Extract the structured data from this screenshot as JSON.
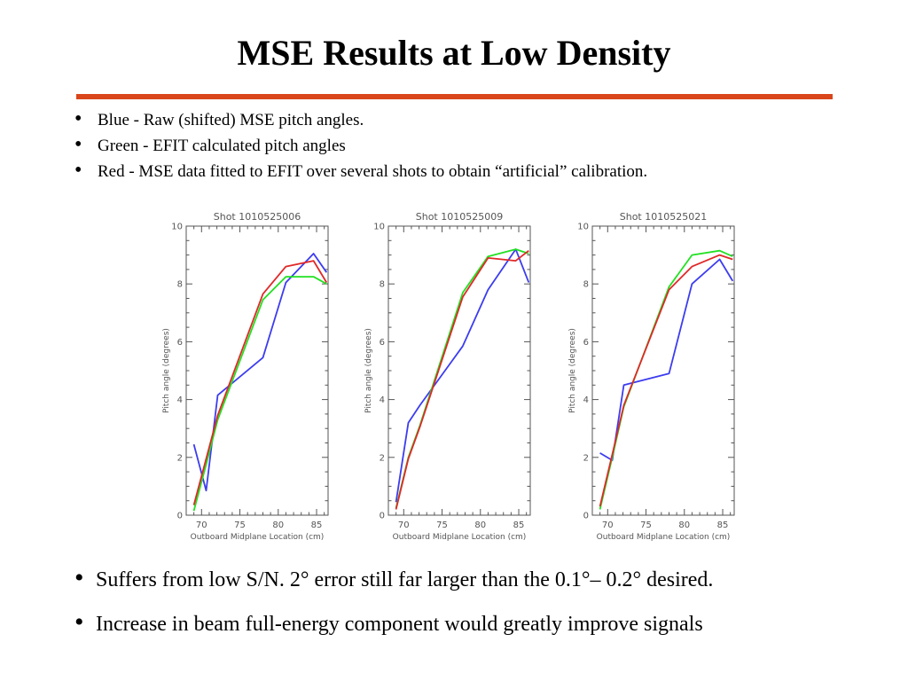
{
  "title": "MSE Results at Low Density",
  "colors": {
    "accent_rule": "#d9461b",
    "blue": "#3c3cf0",
    "green": "#22e022",
    "red": "#e02828",
    "axis": "#555555"
  },
  "bullets_top": [
    "Blue - Raw (shifted) MSE pitch angles.",
    "Green - EFIT calculated pitch angles",
    "Red - MSE data fitted to EFIT over several shots to obtain “artificial” calibration."
  ],
  "bullets_bottom": [
    "Suffers from low S/N.   2° error still far larger than the 0.1°– 0.2° desired.",
    "Increase in beam full-energy component would greatly improve signals"
  ],
  "chart_data": [
    {
      "type": "line",
      "title": "Shot 1010525006",
      "xlabel": "Outboard Midplane Location (cm)",
      "ylabel": "Pitch angle (degrees)",
      "xlim": [
        68,
        86.5
      ],
      "ylim": [
        0,
        10
      ],
      "xticks": [
        "70",
        "75",
        "80",
        "85"
      ],
      "yticks": [
        "0",
        "2",
        "4",
        "6",
        "8",
        "10"
      ],
      "series": [
        {
          "color": "#3c3cf0",
          "x": [
            69,
            70.6,
            72.1,
            78,
            81,
            84.6,
            86.3
          ],
          "y": [
            2.45,
            0.85,
            4.15,
            5.45,
            8.05,
            9.05,
            8.4
          ]
        },
        {
          "color": "#22e022",
          "x": [
            69,
            70.6,
            72.1,
            78,
            81,
            84.6,
            86.3
          ],
          "y": [
            0.15,
            1.75,
            3.3,
            7.45,
            8.25,
            8.25,
            8.0
          ]
        },
        {
          "color": "#e02828",
          "x": [
            69,
            70.6,
            72.1,
            78,
            81,
            84.6,
            86.3
          ],
          "y": [
            0.35,
            1.95,
            3.45,
            7.65,
            8.6,
            8.8,
            8.05
          ]
        }
      ]
    },
    {
      "type": "line",
      "title": "Shot 1010525009",
      "xlabel": "Outboard Midplane Location (cm)",
      "ylabel": "Pitch angle (degrees)",
      "xlim": [
        68,
        86.5
      ],
      "ylim": [
        0,
        10
      ],
      "xticks": [
        "70",
        "75",
        "80",
        "85"
      ],
      "yticks": [
        "0",
        "2",
        "4",
        "6",
        "8",
        "10"
      ],
      "series": [
        {
          "color": "#3c3cf0",
          "x": [
            69,
            70.6,
            72.1,
            77.7,
            81,
            84.6,
            86.3
          ],
          "y": [
            0.45,
            3.2,
            3.8,
            5.85,
            7.8,
            9.2,
            8.05
          ]
        },
        {
          "color": "#22e022",
          "x": [
            69,
            70.6,
            72.1,
            77.7,
            81,
            84.6,
            86.3
          ],
          "y": [
            0.25,
            2.0,
            3.1,
            7.7,
            8.95,
            9.2,
            9.05
          ]
        },
        {
          "color": "#e02828",
          "x": [
            69,
            70.6,
            72.1,
            77.7,
            81,
            84.6,
            86.3
          ],
          "y": [
            0.2,
            1.95,
            3.05,
            7.55,
            8.9,
            8.8,
            9.15
          ]
        }
      ]
    },
    {
      "type": "line",
      "title": "Shot 1010525021",
      "xlabel": "Outboard Midplane Location (cm)",
      "ylabel": "Pitch angle (degrees)",
      "xlim": [
        68,
        86.5
      ],
      "ylim": [
        0,
        10
      ],
      "xticks": [
        "70",
        "75",
        "80",
        "85"
      ],
      "yticks": [
        "0",
        "2",
        "4",
        "6",
        "8",
        "10"
      ],
      "series": [
        {
          "color": "#3c3cf0",
          "x": [
            69,
            70.6,
            72.1,
            78,
            81,
            84.6,
            86.3
          ],
          "y": [
            2.15,
            1.9,
            4.5,
            4.9,
            8.0,
            8.85,
            8.1
          ]
        },
        {
          "color": "#22e022",
          "x": [
            69,
            70.6,
            72.1,
            78,
            81,
            84.6,
            86.3
          ],
          "y": [
            0.2,
            2.0,
            3.75,
            7.9,
            9.0,
            9.15,
            8.95
          ]
        },
        {
          "color": "#e02828",
          "x": [
            69,
            70.6,
            72.1,
            78,
            81,
            84.6,
            86.3
          ],
          "y": [
            0.3,
            2.1,
            3.8,
            7.8,
            8.6,
            9.0,
            8.85
          ]
        }
      ]
    }
  ]
}
